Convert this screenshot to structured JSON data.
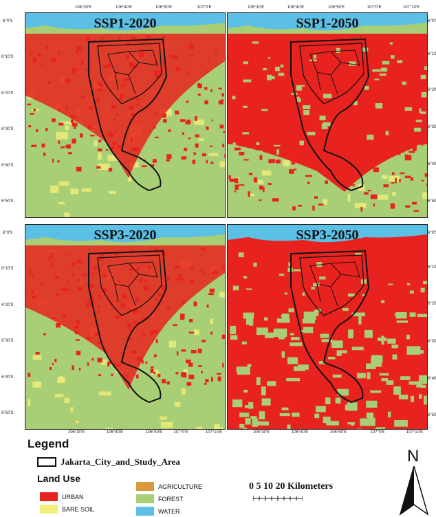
{
  "panels": {
    "p1": {
      "title": "SSP1-2020"
    },
    "p2": {
      "title": "SSP1-2050"
    },
    "p3": {
      "title": "SSP3-2020"
    },
    "p4": {
      "title": "SSP3-2050"
    }
  },
  "ticks": {
    "lon_top": [
      "106°30'E",
      "106°40'E",
      "106°50'E",
      "107°0'E",
      "107°10'E"
    ],
    "lon_bottom": [
      "106°30'E",
      "106°40'E",
      "106°50'E",
      "107°0'E",
      "107°10'E"
    ],
    "lat": [
      "6°0'S",
      "6°10'S",
      "6°20'S",
      "6°30'S",
      "6°40'S",
      "6°50'S"
    ]
  },
  "legend": {
    "title": "Legend",
    "boundary_label": "Jakarta_City_and_Study_Area",
    "land_use_title": "Land Use",
    "classes": [
      {
        "label": "URBAN",
        "color": "#e8231f"
      },
      {
        "label": "BARE SOIL",
        "color": "#f2ee7a"
      },
      {
        "label": "AGRICULTURE",
        "color": "#d99a3c"
      },
      {
        "label": "FOREST",
        "color": "#a9cf76"
      },
      {
        "label": "WATER",
        "color": "#5bbfe6"
      }
    ]
  },
  "scale": {
    "label": "0  5 10     20 Kilometers"
  },
  "north": {
    "label": "N"
  },
  "colors": {
    "urban": "#e8231f",
    "forest": "#a9cf76",
    "water": "#5bbfe6",
    "bare_soil": "#f2ee7a",
    "boundary": "#111111"
  }
}
